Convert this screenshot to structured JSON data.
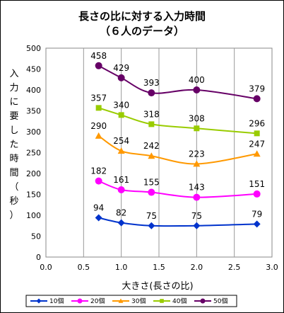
{
  "chart_data": {
    "type": "line",
    "title": "長さの比に対する入力時間",
    "subtitle": "（６人のデータ）",
    "xlabel": "大きさ(長さの比)",
    "ylabel": "入力に要した時間（秒）",
    "xlim": [
      0.0,
      3.0
    ],
    "ylim": [
      0,
      500
    ],
    "xticks": [
      "0.0",
      "0.5",
      "1.0",
      "1.5",
      "2.0",
      "2.5",
      "3.0"
    ],
    "yticks": [
      "0",
      "50",
      "100",
      "150",
      "200",
      "250",
      "300",
      "350",
      "400",
      "450",
      "500"
    ],
    "x": [
      0.7,
      1.0,
      1.4,
      2.0,
      2.8
    ],
    "grid": "vertical",
    "legend": "bottom",
    "series": [
      {
        "name": "10個",
        "values": [
          94,
          82,
          75,
          75,
          79
        ],
        "labels": [
          "94",
          "82",
          "75",
          "75",
          "79"
        ],
        "color": "#0033cc",
        "marker": "diamond"
      },
      {
        "name": "20個",
        "values": [
          182,
          161,
          155,
          143,
          151
        ],
        "labels": [
          "182",
          "161",
          "155",
          "143",
          "151"
        ],
        "color": "#ff00ff",
        "marker": "circle"
      },
      {
        "name": "30個",
        "values": [
          290,
          254,
          242,
          223,
          247
        ],
        "labels": [
          "290",
          "254",
          "242",
          "223",
          "247"
        ],
        "color": "#ff9900",
        "marker": "triangle"
      },
      {
        "name": "40個",
        "values": [
          357,
          340,
          318,
          308,
          296
        ],
        "labels": [
          "357",
          "340",
          "318",
          "308",
          "296"
        ],
        "color": "#99cc00",
        "marker": "square"
      },
      {
        "name": "50個",
        "values": [
          458,
          429,
          393,
          400,
          379
        ],
        "labels": [
          "458",
          "429",
          "393",
          "400",
          "379"
        ],
        "color": "#660066",
        "marker": "circle"
      }
    ]
  }
}
